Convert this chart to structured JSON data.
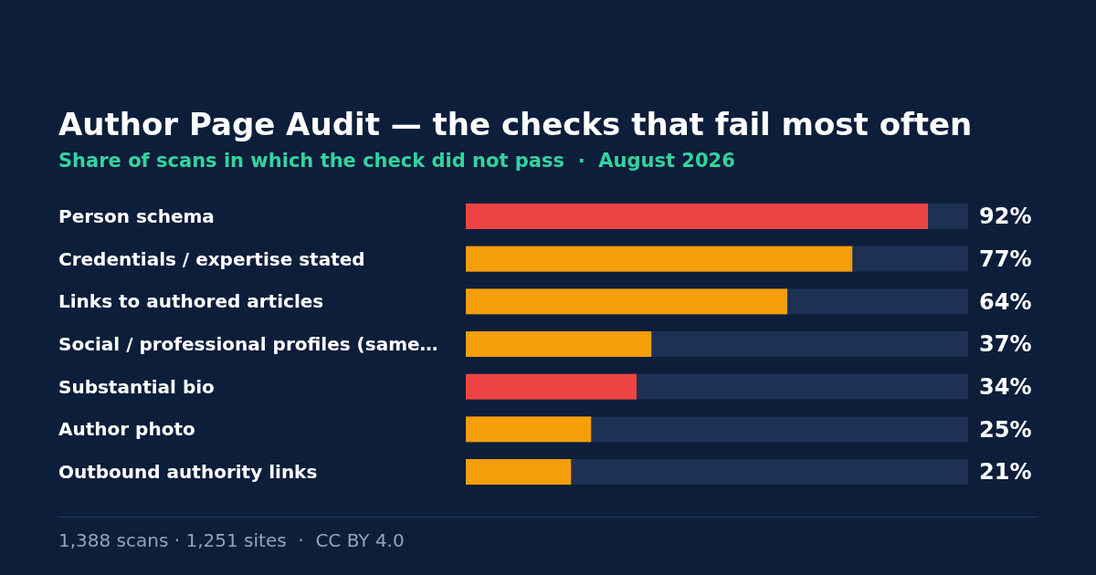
{
  "chart_data": {
    "type": "bar",
    "orientation": "horizontal",
    "stacked": true,
    "title": "Author Page Audit — the checks that fail most often",
    "subtitle": "Share of scans in which the check did not pass  ·  August 2026",
    "categories": [
      "Person schema",
      "Credentials / expertise stated",
      "Links to authored articles",
      "Social / professional profiles (same…",
      "Substantial bio",
      "Author photo",
      "Outbound authority links"
    ],
    "series": [
      {
        "colors": [
          "#ef4444",
          "#f59e0b",
          "#f59e0b",
          "#f59e0b",
          "#ef4444",
          "#f59e0b",
          "#f59e0b"
        ],
        "values": [
          92,
          77,
          64,
          37,
          34,
          25,
          21
        ],
        "value_labels": [
          "92%",
          "77%",
          "64%",
          "37%",
          "34%",
          "25%",
          "21%"
        ]
      },
      {
        "color": "#1e3154",
        "values": [
          8,
          23,
          36,
          63,
          66,
          75,
          79
        ]
      }
    ],
    "xlim": [
      0,
      100
    ],
    "tick_labels": "y",
    "annotations": [
      "1,388 scans · 1,251 sites  ·  CC BY 4.0"
    ]
  }
}
